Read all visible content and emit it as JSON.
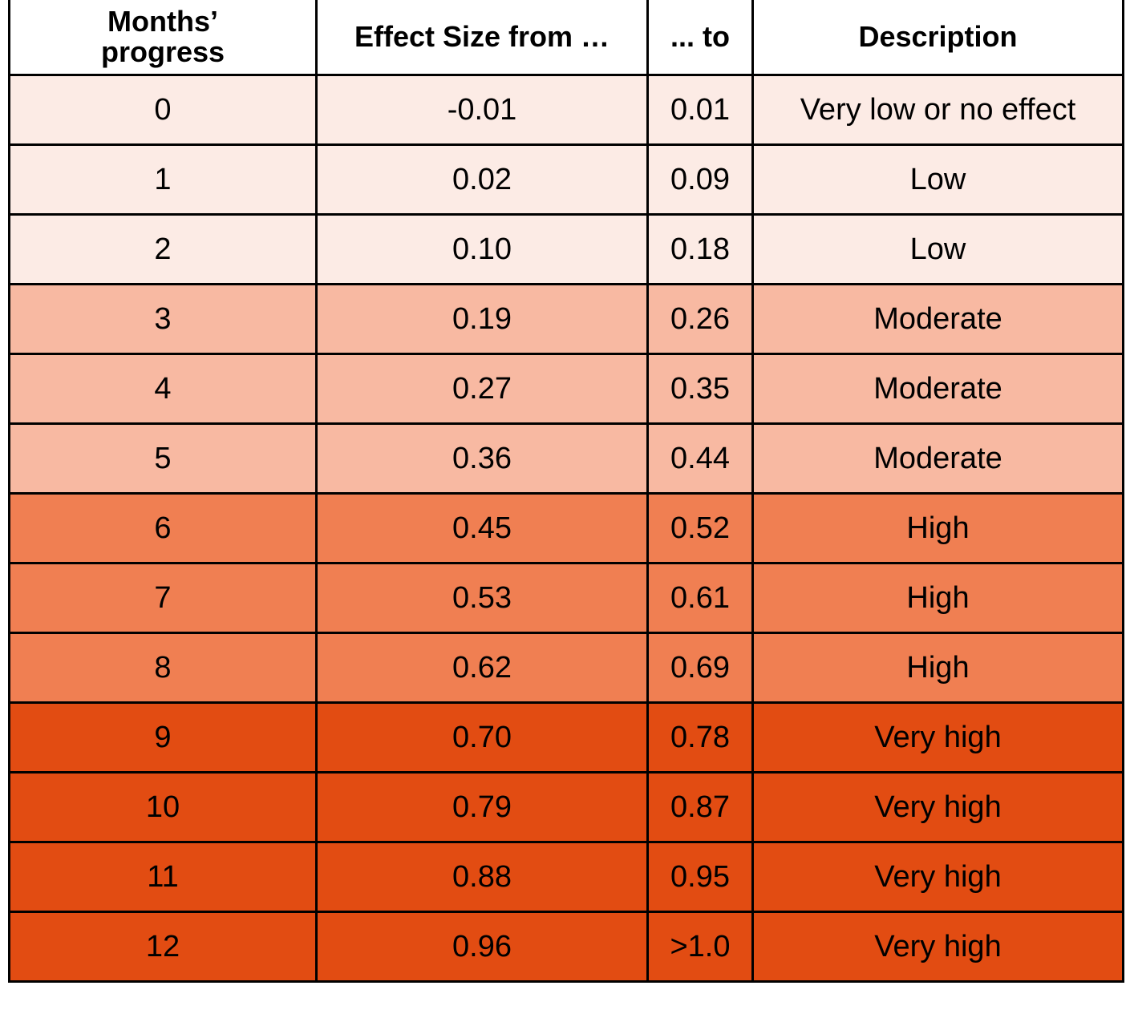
{
  "table": {
    "header": [
      "Months’ progress",
      "Effect Size from …",
      "... to",
      "Description"
    ],
    "rows": [
      [
        "0",
        "-0.01",
        "0.01",
        "Very low or no effect"
      ],
      [
        "1",
        "0.02",
        "0.09",
        "Low"
      ],
      [
        "2",
        "0.10",
        "0.18",
        "Low"
      ],
      [
        "3",
        "0.19",
        "0.26",
        "Moderate"
      ],
      [
        "4",
        "0.27",
        "0.35",
        "Moderate"
      ],
      [
        "5",
        "0.36",
        "0.44",
        "Moderate"
      ],
      [
        "6",
        "0.45",
        "0.52",
        "High"
      ],
      [
        "7",
        "0.53",
        "0.61",
        "High"
      ],
      [
        "8",
        "0.62",
        "0.69",
        "High"
      ],
      [
        "9",
        "0.70",
        "0.78",
        "Very high"
      ],
      [
        "10",
        "0.79",
        "0.87",
        "Very high"
      ],
      [
        "11",
        "0.88",
        "0.95",
        "Very high"
      ],
      [
        "12",
        "0.96",
        ">1.0",
        "Very high"
      ]
    ]
  }
}
